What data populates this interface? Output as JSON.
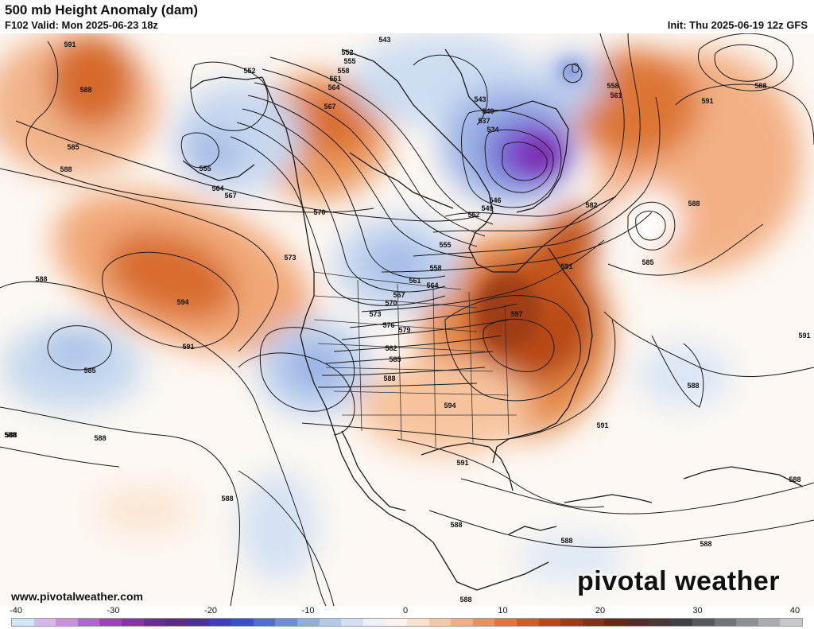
{
  "header": {
    "title": "500 mb Height Anomaly (dam)",
    "valid": "F102 Valid: Mon 2025-06-23 18z",
    "init": "Init: Thu 2025-06-19 12z GFS"
  },
  "footer": {
    "url": "www.pivotalweather.com",
    "logo": "pivotal weather"
  },
  "colorbar": {
    "tick_labels": [
      "-40",
      "-30",
      "-20",
      "-10",
      "0",
      "10",
      "20",
      "30",
      "40"
    ],
    "colors": [
      "#cfe7f7",
      "#d6b8ec",
      "#c98fe0",
      "#b860d3",
      "#a33fbe",
      "#8a33a8",
      "#6f2b94",
      "#5a2a8a",
      "#4b2f9c",
      "#3d3fbf",
      "#3552c9",
      "#4a6fd1",
      "#6b8edb",
      "#8faee3",
      "#b3c9ec",
      "#d3e0f3",
      "#eaf1f9",
      "#fbf3ec",
      "#fce2cc",
      "#f9c9a4",
      "#f4ad7c",
      "#ee9157",
      "#e27636",
      "#cf5e1e",
      "#b84a12",
      "#a03c10",
      "#86310f",
      "#6e2711",
      "#5a2a2a",
      "#4a3636",
      "#3f4146",
      "#55585e",
      "#707378",
      "#8c8f94",
      "#a9abaf",
      "#c6c8cb"
    ]
  },
  "map": {
    "label_color": "#111111",
    "contour_color": "#1a1a1a",
    "contour_labels": [
      {
        "text": "591"
      },
      {
        "text": "588"
      },
      {
        "text": "585"
      },
      {
        "text": "588"
      },
      {
        "text": "588"
      },
      {
        "text": "594"
      },
      {
        "text": "591"
      },
      {
        "text": "585"
      },
      {
        "text": "588"
      },
      {
        "text": "588"
      },
      {
        "text": "552"
      },
      {
        "text": "555"
      },
      {
        "text": "543"
      },
      {
        "text": "552"
      },
      {
        "text": "555"
      },
      {
        "text": "558"
      },
      {
        "text": "561"
      },
      {
        "text": "564"
      },
      {
        "text": "567"
      },
      {
        "text": "564"
      },
      {
        "text": "567"
      },
      {
        "text": "570"
      },
      {
        "text": "573"
      },
      {
        "text": "543"
      },
      {
        "text": "540"
      },
      {
        "text": "537"
      },
      {
        "text": "534"
      },
      {
        "text": "546"
      },
      {
        "text": "549"
      },
      {
        "text": "552"
      },
      {
        "text": "555"
      },
      {
        "text": "558"
      },
      {
        "text": "561"
      },
      {
        "text": "564"
      },
      {
        "text": "567"
      },
      {
        "text": "570"
      },
      {
        "text": "573"
      },
      {
        "text": "576"
      },
      {
        "text": "579"
      },
      {
        "text": "582"
      },
      {
        "text": "585"
      },
      {
        "text": "588"
      },
      {
        "text": "594"
      },
      {
        "text": "591"
      },
      {
        "text": "588"
      },
      {
        "text": "597"
      },
      {
        "text": "591"
      },
      {
        "text": "582"
      },
      {
        "text": "558"
      },
      {
        "text": "561"
      },
      {
        "text": "591"
      },
      {
        "text": "588"
      },
      {
        "text": "588"
      },
      {
        "text": "585"
      },
      {
        "text": "588"
      },
      {
        "text": "591"
      },
      {
        "text": "591"
      },
      {
        "text": "588"
      },
      {
        "text": "588"
      },
      {
        "text": "588"
      },
      {
        "text": "588"
      },
      {
        "text": "588"
      },
      {
        "text": "588"
      }
    ]
  }
}
